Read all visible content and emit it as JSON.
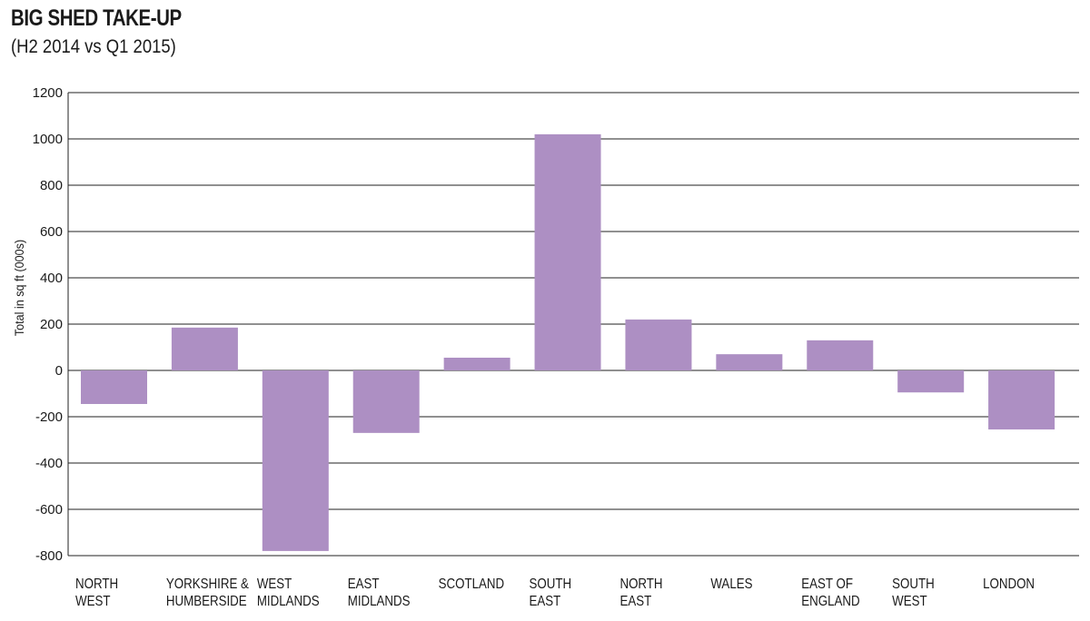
{
  "chart_data": {
    "type": "bar",
    "title": "BIG SHED TAKE-UP",
    "subtitle": "(H2 2014 vs Q1 2015)",
    "ylabel": "Total in sq ft (000s)",
    "xlabel": "",
    "ylim": [
      -800,
      1200
    ],
    "yticks": [
      1200,
      1000,
      800,
      600,
      400,
      200,
      0,
      -200,
      -400,
      -600,
      -800
    ],
    "grid": true,
    "categories": [
      [
        "NORTH",
        "WEST"
      ],
      [
        "YORKSHIRE &",
        "HUMBERSIDE"
      ],
      [
        "WEST",
        "MIDLANDS"
      ],
      [
        "EAST",
        "MIDLANDS"
      ],
      [
        "SCOTLAND"
      ],
      [
        "SOUTH",
        "EAST"
      ],
      [
        "NORTH",
        "EAST"
      ],
      [
        "WALES"
      ],
      [
        "EAST OF",
        "ENGLAND"
      ],
      [
        "SOUTH",
        "WEST"
      ],
      [
        "LONDON"
      ]
    ],
    "values": [
      -145,
      185,
      -780,
      -270,
      55,
      1020,
      220,
      70,
      130,
      -95,
      -255
    ],
    "bar_color": "#ad8fc3"
  }
}
